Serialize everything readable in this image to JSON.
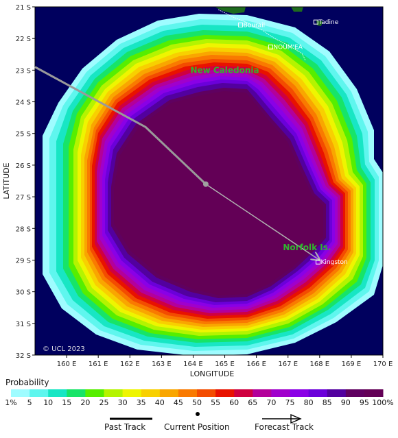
{
  "map": {
    "lon_range": [
      159.0,
      170.0
    ],
    "lat_range": [
      -32.0,
      -21.0
    ],
    "x_ticks": [
      "160 E",
      "161 E",
      "162 E",
      "163 E",
      "164 E",
      "165 E",
      "166 E",
      "167 E",
      "168 E",
      "169 E",
      "170 E"
    ],
    "y_ticks": [
      "21 S",
      "22 S",
      "23 S",
      "24 S",
      "25 S",
      "26 S",
      "27 S",
      "28 S",
      "29 S",
      "30 S",
      "31 S",
      "32 S"
    ],
    "x_label": "LONGITUDE",
    "y_label": "LATITUDE",
    "ocean_color": "#00005e",
    "land_color": "#1e6b1e",
    "copyright": "© UCL 2023"
  },
  "places": [
    {
      "name": "Bourail",
      "lon": 165.5,
      "lat": -21.57
    },
    {
      "name": "NOUM'EA",
      "lon": 166.45,
      "lat": -22.27
    },
    {
      "name": "Tadine",
      "lon": 167.88,
      "lat": -21.48
    },
    {
      "name": "Kingston",
      "lon": 167.95,
      "lat": -29.06
    }
  ],
  "region_labels": [
    {
      "text": "New Caledonia",
      "lon": 165.0,
      "lat": -23.0
    },
    {
      "text": "Norfolk Is.",
      "lon": 167.6,
      "lat": -28.6
    }
  ],
  "track": {
    "past": [
      {
        "lon": 159.0,
        "lat": -22.9
      },
      {
        "lon": 162.5,
        "lat": -24.8
      },
      {
        "lon": 164.4,
        "lat": -26.6
      }
    ],
    "current_position": {
      "lon": 164.4,
      "lat": -26.6
    },
    "forecast": [
      {
        "lon": 164.4,
        "lat": -26.6
      },
      {
        "lon": 168.0,
        "lat": -29.0
      }
    ],
    "past_color": "#9a9a9a",
    "forecast_color": "#b0b0b0"
  },
  "legend": {
    "title": "Probability",
    "ticks": [
      "1%",
      "5",
      "10",
      "15",
      "20",
      "25",
      "30",
      "35",
      "40",
      "45",
      "50",
      "55",
      "60",
      "65",
      "70",
      "75",
      "80",
      "85",
      "90",
      "95",
      "100%"
    ],
    "colors": [
      "#9ffcff",
      "#5ff6ee",
      "#18e6c4",
      "#17e468",
      "#56ee00",
      "#b4f400",
      "#eef500",
      "#f8d000",
      "#f9a600",
      "#f97a00",
      "#f34c00",
      "#e81200",
      "#cf0040",
      "#b3009a",
      "#a000cc",
      "#8a00e6",
      "#6b00da",
      "#52009f",
      "#5f0060",
      "#630056"
    ],
    "track_labels": {
      "past": "Past Track",
      "current": "Current Position",
      "forecast": "Forecast Track"
    }
  }
}
